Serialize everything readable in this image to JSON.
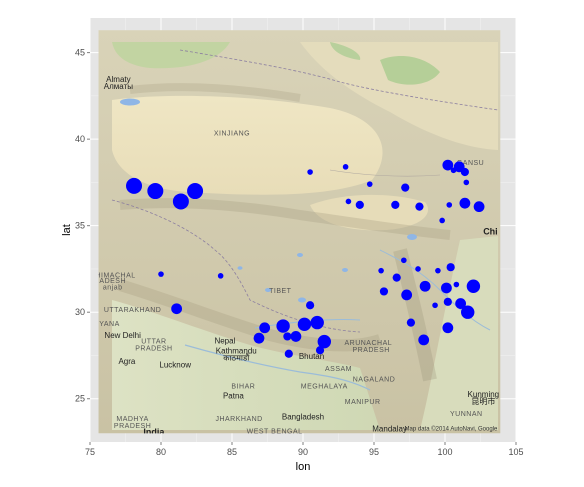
{
  "chart_data": {
    "type": "scatter",
    "xlabel": "lon",
    "ylabel": "lat",
    "xlim": [
      75,
      105
    ],
    "ylim": [
      22.5,
      47
    ],
    "x_ticks": [
      75,
      80,
      85,
      90,
      95,
      100,
      105
    ],
    "y_ticks": [
      25,
      30,
      35,
      40,
      45
    ],
    "grid": true,
    "point_color": "#0000ff",
    "panel_background": "#e5e5e5",
    "basemap": {
      "lon_range": [
        75.6,
        103.9
      ],
      "lat_range": [
        23.0,
        46.3
      ],
      "attribution": "Map data ©2014 AutoNavi, Google",
      "labels": [
        {
          "text": "Almaty",
          "lon": 77.0,
          "lat": 43.3,
          "kind": "city"
        },
        {
          "text": "Алматы",
          "lon": 77.0,
          "lat": 42.9,
          "kind": "city"
        },
        {
          "text": "XINJIANG",
          "lon": 85.0,
          "lat": 40.2,
          "kind": "region"
        },
        {
          "text": "GANSU",
          "lon": 101.8,
          "lat": 38.5,
          "kind": "region"
        },
        {
          "text": "Chi",
          "lon": 103.2,
          "lat": 34.5,
          "kind": "big"
        },
        {
          "text": "HIMACHAL",
          "lon": 76.8,
          "lat": 32.0,
          "kind": "region"
        },
        {
          "text": "ADESH",
          "lon": 76.6,
          "lat": 31.7,
          "kind": "region"
        },
        {
          "text": "anjab",
          "lon": 76.6,
          "lat": 31.3,
          "kind": "region"
        },
        {
          "text": "UTTARAKHAND",
          "lon": 78.0,
          "lat": 30.0,
          "kind": "region"
        },
        {
          "text": "ARYANA",
          "lon": 76.0,
          "lat": 29.2,
          "kind": "region"
        },
        {
          "text": "New Delhi",
          "lon": 77.3,
          "lat": 28.5,
          "kind": "city"
        },
        {
          "text": "UTTAR",
          "lon": 79.5,
          "lat": 28.2,
          "kind": "region"
        },
        {
          "text": "PRADESH",
          "lon": 79.5,
          "lat": 27.8,
          "kind": "region"
        },
        {
          "text": "Agra",
          "lon": 77.6,
          "lat": 27.0,
          "kind": "city"
        },
        {
          "text": "Lucknow",
          "lon": 81.0,
          "lat": 26.8,
          "kind": "city"
        },
        {
          "text": "Nepal",
          "lon": 84.5,
          "lat": 28.2,
          "kind": "city"
        },
        {
          "text": "Kathmandu",
          "lon": 85.3,
          "lat": 27.6,
          "kind": "city"
        },
        {
          "text": "काठमाडौं",
          "lon": 85.3,
          "lat": 27.2,
          "kind": "city"
        },
        {
          "text": "Bhutan",
          "lon": 90.6,
          "lat": 27.3,
          "kind": "city"
        },
        {
          "text": "TIBET",
          "lon": 88.4,
          "lat": 31.1,
          "kind": "region"
        },
        {
          "text": "ASSAM",
          "lon": 92.5,
          "lat": 26.6,
          "kind": "region"
        },
        {
          "text": "ARUNACHAL",
          "lon": 94.6,
          "lat": 28.1,
          "kind": "region"
        },
        {
          "text": "PRADESH",
          "lon": 94.8,
          "lat": 27.7,
          "kind": "region"
        },
        {
          "text": "MEGHALAYA",
          "lon": 91.5,
          "lat": 25.6,
          "kind": "region"
        },
        {
          "text": "NAGALAND",
          "lon": 95.0,
          "lat": 26.0,
          "kind": "region"
        },
        {
          "text": "MANIPUR",
          "lon": 94.2,
          "lat": 24.7,
          "kind": "region"
        },
        {
          "text": "BIHAR",
          "lon": 85.8,
          "lat": 25.6,
          "kind": "region"
        },
        {
          "text": "Patna",
          "lon": 85.1,
          "lat": 25.0,
          "kind": "city"
        },
        {
          "text": "JHARKHAND",
          "lon": 85.5,
          "lat": 23.7,
          "kind": "region"
        },
        {
          "text": "WEST BENGAL",
          "lon": 88.0,
          "lat": 23.0,
          "kind": "region"
        },
        {
          "text": "Bangladesh",
          "lon": 90.0,
          "lat": 23.8,
          "kind": "city"
        },
        {
          "text": "MADHYA",
          "lon": 78.0,
          "lat": 23.7,
          "kind": "region"
        },
        {
          "text": "PRADESH",
          "lon": 78.0,
          "lat": 23.3,
          "kind": "region"
        },
        {
          "text": "India",
          "lon": 79.5,
          "lat": 22.9,
          "kind": "big"
        },
        {
          "text": "Kunming",
          "lon": 102.7,
          "lat": 25.1,
          "kind": "city"
        },
        {
          "text": "昆明市",
          "lon": 102.7,
          "lat": 24.7,
          "kind": "city"
        },
        {
          "text": "YUNNAN",
          "lon": 101.5,
          "lat": 24.0,
          "kind": "region"
        },
        {
          "text": "Mandalay",
          "lon": 96.1,
          "lat": 23.1,
          "kind": "city"
        }
      ]
    },
    "points": [
      {
        "lon": 78.1,
        "lat": 37.3,
        "size": 5
      },
      {
        "lon": 79.6,
        "lat": 37.0,
        "size": 5
      },
      {
        "lon": 81.4,
        "lat": 36.4,
        "size": 5
      },
      {
        "lon": 82.4,
        "lat": 37.0,
        "size": 5
      },
      {
        "lon": 80.0,
        "lat": 32.2,
        "size": 1
      },
      {
        "lon": 81.1,
        "lat": 30.2,
        "size": 3
      },
      {
        "lon": 84.2,
        "lat": 32.1,
        "size": 1
      },
      {
        "lon": 86.9,
        "lat": 28.5,
        "size": 3
      },
      {
        "lon": 87.3,
        "lat": 29.1,
        "size": 3
      },
      {
        "lon": 88.6,
        "lat": 29.2,
        "size": 4
      },
      {
        "lon": 88.9,
        "lat": 28.6,
        "size": 2
      },
      {
        "lon": 89.0,
        "lat": 27.6,
        "size": 2
      },
      {
        "lon": 89.5,
        "lat": 28.6,
        "size": 3
      },
      {
        "lon": 90.1,
        "lat": 29.3,
        "size": 4
      },
      {
        "lon": 91.0,
        "lat": 29.4,
        "size": 4
      },
      {
        "lon": 90.5,
        "lat": 30.4,
        "size": 2
      },
      {
        "lon": 91.2,
        "lat": 27.8,
        "size": 2
      },
      {
        "lon": 91.5,
        "lat": 28.3,
        "size": 4
      },
      {
        "lon": 90.5,
        "lat": 38.1,
        "size": 1
      },
      {
        "lon": 93.0,
        "lat": 38.4,
        "size": 1
      },
      {
        "lon": 93.2,
        "lat": 36.4,
        "size": 1
      },
      {
        "lon": 94.0,
        "lat": 36.2,
        "size": 2
      },
      {
        "lon": 94.7,
        "lat": 37.4,
        "size": 1
      },
      {
        "lon": 96.5,
        "lat": 36.2,
        "size": 2
      },
      {
        "lon": 97.2,
        "lat": 37.2,
        "size": 2
      },
      {
        "lon": 98.2,
        "lat": 36.1,
        "size": 2
      },
      {
        "lon": 99.8,
        "lat": 35.3,
        "size": 1
      },
      {
        "lon": 100.2,
        "lat": 38.5,
        "size": 3
      },
      {
        "lon": 100.6,
        "lat": 38.2,
        "size": 1
      },
      {
        "lon": 101.0,
        "lat": 38.4,
        "size": 3
      },
      {
        "lon": 101.4,
        "lat": 38.1,
        "size": 2
      },
      {
        "lon": 101.5,
        "lat": 37.5,
        "size": 1
      },
      {
        "lon": 100.3,
        "lat": 36.2,
        "size": 1
      },
      {
        "lon": 101.4,
        "lat": 36.3,
        "size": 3
      },
      {
        "lon": 102.4,
        "lat": 36.1,
        "size": 3
      },
      {
        "lon": 95.5,
        "lat": 32.4,
        "size": 1
      },
      {
        "lon": 95.7,
        "lat": 31.2,
        "size": 2
      },
      {
        "lon": 96.6,
        "lat": 32.0,
        "size": 2
      },
      {
        "lon": 97.1,
        "lat": 33.0,
        "size": 1
      },
      {
        "lon": 97.3,
        "lat": 31.0,
        "size": 3
      },
      {
        "lon": 97.6,
        "lat": 29.4,
        "size": 2
      },
      {
        "lon": 98.1,
        "lat": 32.5,
        "size": 1
      },
      {
        "lon": 98.6,
        "lat": 31.5,
        "size": 3
      },
      {
        "lon": 98.5,
        "lat": 28.4,
        "size": 3
      },
      {
        "lon": 99.3,
        "lat": 30.4,
        "size": 1
      },
      {
        "lon": 99.5,
        "lat": 32.4,
        "size": 1
      },
      {
        "lon": 100.1,
        "lat": 31.4,
        "size": 3
      },
      {
        "lon": 100.2,
        "lat": 30.6,
        "size": 2
      },
      {
        "lon": 100.4,
        "lat": 32.6,
        "size": 2
      },
      {
        "lon": 100.2,
        "lat": 29.1,
        "size": 3
      },
      {
        "lon": 100.8,
        "lat": 31.6,
        "size": 1
      },
      {
        "lon": 101.1,
        "lat": 30.5,
        "size": 3
      },
      {
        "lon": 101.6,
        "lat": 30.0,
        "size": 4
      },
      {
        "lon": 102.0,
        "lat": 31.5,
        "size": 4
      }
    ]
  }
}
